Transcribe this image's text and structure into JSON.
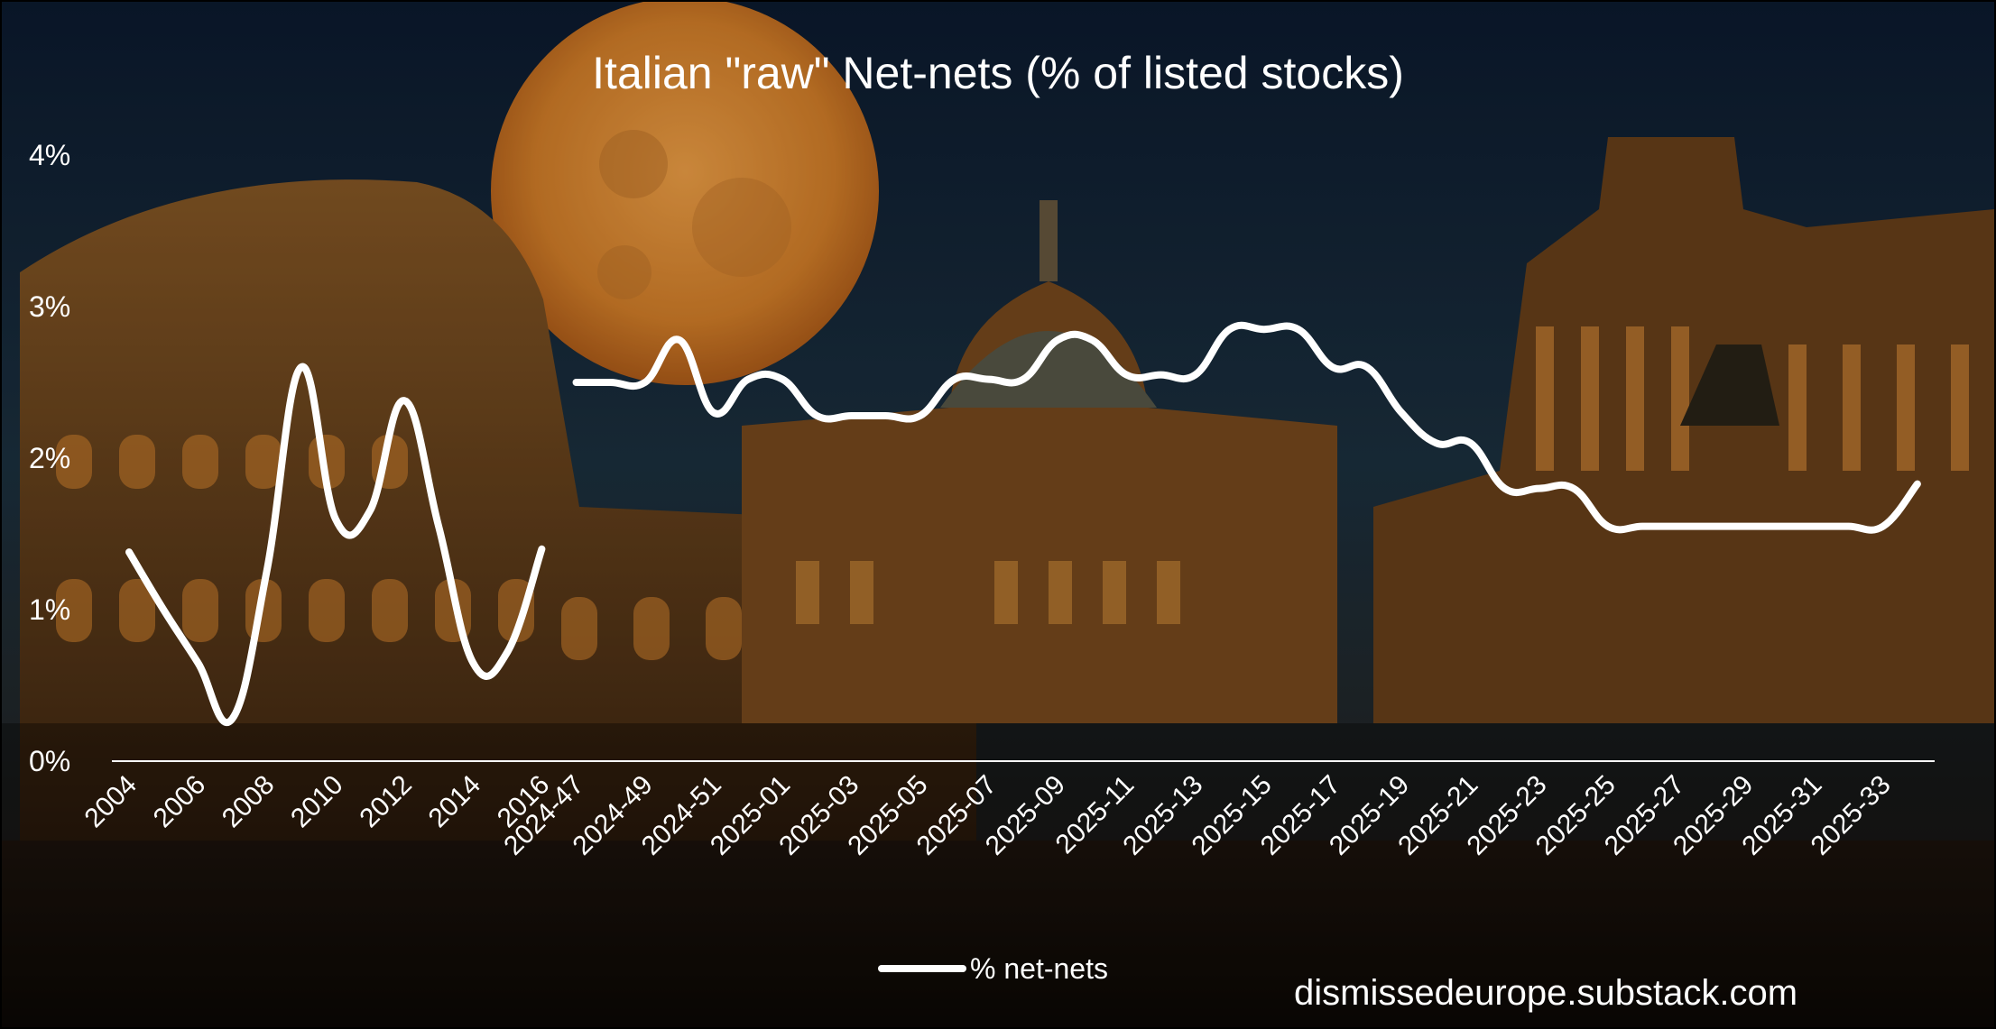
{
  "chart_data": {
    "type": "line",
    "title": "Italian \"raw\" Net-nets (% of listed stocks)",
    "xlabel": "",
    "ylabel": "",
    "ylim": [
      0,
      4
    ],
    "yticks": [
      "0%",
      "1%",
      "2%",
      "3%",
      "4%"
    ],
    "grid": false,
    "legend_position": "bottom",
    "x_tick_labels": [
      "2004",
      "2006",
      "2008",
      "2010",
      "2012",
      "2014",
      "2016",
      "2024-47",
      "2024-49",
      "2024-51",
      "2025-01",
      "2025-03",
      "2025-05",
      "2025-07",
      "2025-09",
      "2025-11",
      "2025-13",
      "2025-15",
      "2025-17",
      "2025-19",
      "2025-21",
      "2025-23",
      "2025-25",
      "2025-27",
      "2025-29",
      "2025-31",
      "2025-33"
    ],
    "segment_1": {
      "x": [
        "2004",
        "2005",
        "2006",
        "2007",
        "2008",
        "2009",
        "2010",
        "2011",
        "2012",
        "2013",
        "2014",
        "2015",
        "2016"
      ],
      "values": [
        1.38,
        1.0,
        0.65,
        0.28,
        1.25,
        2.6,
        1.6,
        1.65,
        2.38,
        1.55,
        0.65,
        0.72,
        1.4
      ]
    },
    "segment_2": {
      "x": [
        "2024-47",
        "2024-48",
        "2024-49",
        "2024-50",
        "2024-51",
        "2024-52",
        "2025-01",
        "2025-02",
        "2025-03",
        "2025-04",
        "2025-05",
        "2025-06",
        "2025-07",
        "2025-08",
        "2025-09",
        "2025-10",
        "2025-11",
        "2025-12",
        "2025-13",
        "2025-14",
        "2025-15",
        "2025-16",
        "2025-17",
        "2025-18",
        "2025-19",
        "2025-20",
        "2025-21",
        "2025-22",
        "2025-23",
        "2025-24",
        "2025-25",
        "2025-26",
        "2025-27",
        "2025-28",
        "2025-29",
        "2025-30",
        "2025-31",
        "2025-32",
        "2025-33",
        "2025-34"
      ],
      "values": [
        2.5,
        2.5,
        2.5,
        2.78,
        2.3,
        2.52,
        2.52,
        2.28,
        2.28,
        2.28,
        2.28,
        2.52,
        2.52,
        2.52,
        2.78,
        2.78,
        2.55,
        2.55,
        2.55,
        2.85,
        2.85,
        2.85,
        2.6,
        2.6,
        2.3,
        2.1,
        2.1,
        1.8,
        1.8,
        1.8,
        1.55,
        1.55,
        1.55,
        1.55,
        1.55,
        1.55,
        1.55,
        1.55,
        1.55,
        1.83
      ]
    },
    "series": [
      {
        "name": "% net-nets",
        "color": "#ffffff"
      }
    ]
  },
  "footer": {
    "source": "dismissedeurope.substack.com"
  }
}
